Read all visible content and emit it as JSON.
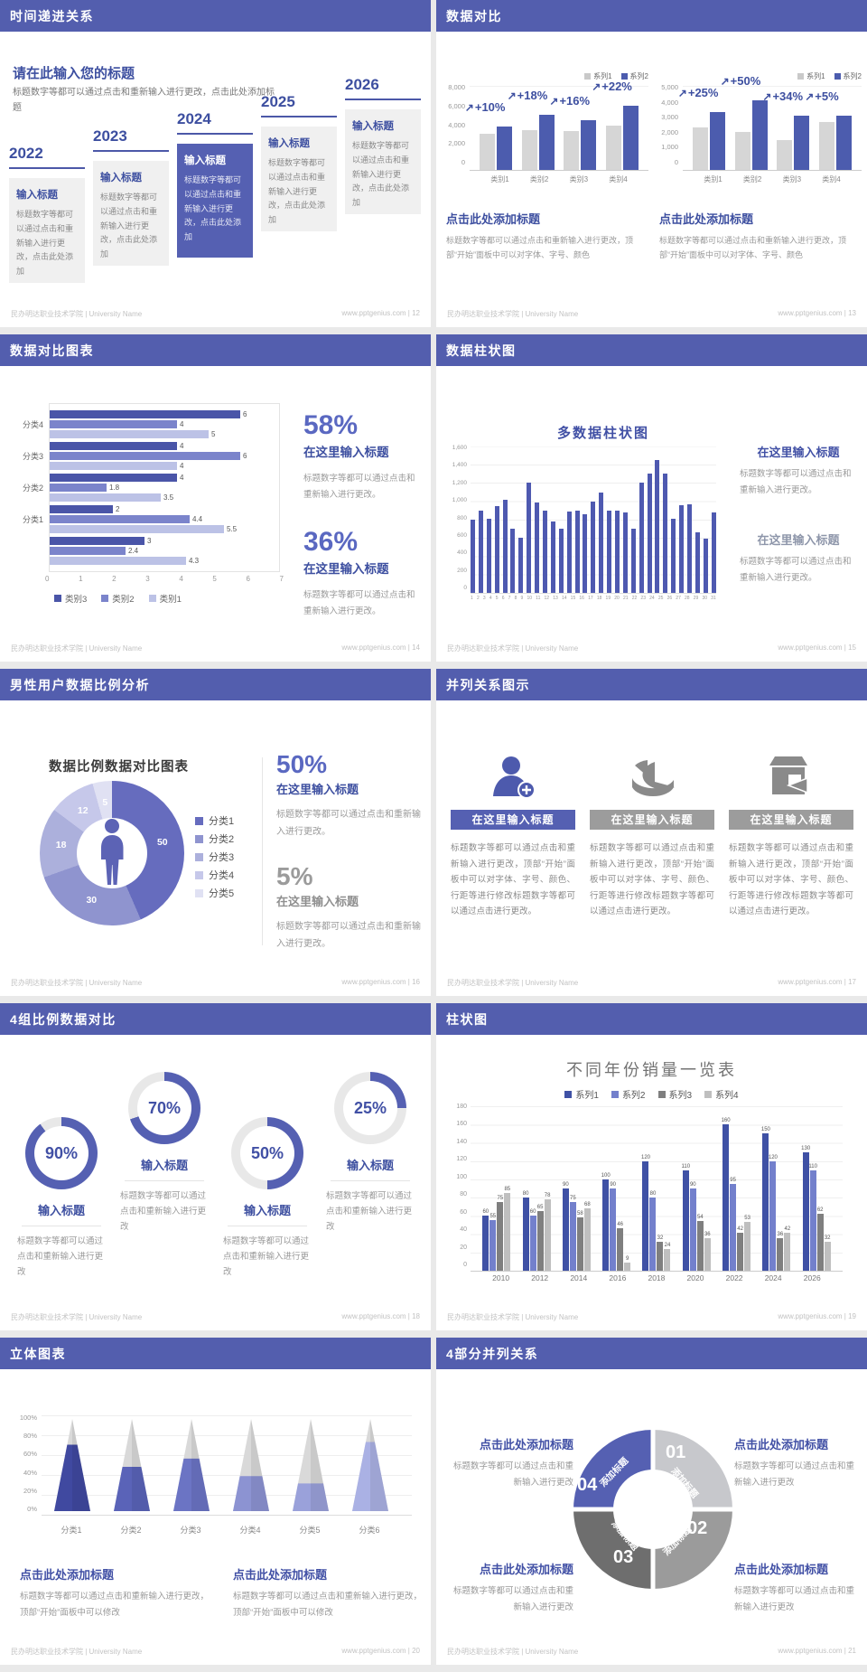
{
  "global": {
    "footer_left": "民办明达职业技术学院 | University Name",
    "footer_site": "www.pptgenius.com",
    "colors": {
      "header": "#535EAE",
      "accent": "#4150A5",
      "big_number": "#5A68C1",
      "bar_purple": "#4C5CAE",
      "bar_gray": "#D6D6D6",
      "body_text": "#8A8A8A",
      "page_bg": "#E9E9E9"
    }
  },
  "slides": [
    {
      "id": "timeline",
      "page": "12",
      "title": "时间递进关系",
      "heading": "请在此输入您的标题",
      "heading_desc": "标题数字等都可以通过点击和重新输入进行更改，点击此处添加标题",
      "items": [
        {
          "year": "2022",
          "label": "输入标题",
          "desc": "标题数字等都可以通过点击和重新输入进行更改，点击此处添加",
          "highlight": false
        },
        {
          "year": "2023",
          "label": "输入标题",
          "desc": "标题数字等都可以通过点击和重新输入进行更改，点击此处添加",
          "highlight": false
        },
        {
          "year": "2024",
          "label": "输入标题",
          "desc": "标题数字等都可以通过点击和重新输入进行更改，点击此处添加",
          "highlight": true
        },
        {
          "year": "2025",
          "label": "输入标题",
          "desc": "标题数字等都可以通过点击和重新输入进行更改，点击此处添加",
          "highlight": false
        },
        {
          "year": "2026",
          "label": "输入标题",
          "desc": "标题数字等都可以通过点击和重新输入进行更改，点击此处添加",
          "highlight": false
        }
      ]
    },
    {
      "id": "data-compare",
      "page": "13",
      "title": "数据对比",
      "panels": [
        {
          "heading": "点击此处添加标题",
          "desc": "标题数字等都可以通过点击和重新输入进行更改，顶部“开始”面板中可以对字体、字号、颜色"
        },
        {
          "heading": "点击此处添加标题",
          "desc": "标题数字等都可以通过点击和重新输入进行更改，顶部“开始”面板中可以对字体、字号、颜色"
        }
      ]
    },
    {
      "id": "compare-chart",
      "page": "14",
      "title": "数据对比图表",
      "stats": [
        {
          "pct": "58%",
          "heading": "在这里输入标题",
          "desc": "标题数字等都可以通过点击和重新输入进行更改。"
        },
        {
          "pct": "36%",
          "heading": "在这里输入标题",
          "desc": "标题数字等都可以通过点击和重新输入进行更改。"
        }
      ]
    },
    {
      "id": "column-chart",
      "page": "15",
      "title": "数据柱状图",
      "chart_title": "多数据柱状图",
      "blocks": [
        {
          "heading": "在这里输入标题",
          "desc": "标题数字等都可以通过点击和重新输入进行更改。"
        },
        {
          "heading": "在这里输入标题",
          "desc": "标题数字等都可以通过点击和重新输入进行更改。"
        }
      ]
    },
    {
      "id": "male-donut",
      "page": "16",
      "title": "男性用户数据比例分析",
      "chart_title": "数据比例数据对比图表",
      "stats": [
        {
          "pct": "50%",
          "heading": "在这里输入标题",
          "desc": "标题数字等都可以通过点击和重新输入进行更改。"
        },
        {
          "pct": "5%",
          "heading": "在这里输入标题",
          "desc": "标题数字等都可以通过点击和重新输入进行更改。"
        }
      ]
    },
    {
      "id": "parallel",
      "page": "17",
      "title": "并列关系图示",
      "columns": [
        {
          "icon": "woman-plus-icon",
          "title": "在这里输入标题",
          "desc": "标题数字等都可以通过点击和重新输入进行更改，顶部“开始”面板中可以对字体、字号、颜色、行距等进行修改标题数字等都可以通过点击进行更改。"
        },
        {
          "icon": "pie-3d-icon",
          "title": "在这里输入标题",
          "desc": "标题数字等都可以通过点击和重新输入进行更改，顶部“开始”面板中可以对字体、字号、颜色、行距等进行修改标题数字等都可以通过点击进行更改。"
        },
        {
          "icon": "shop-icon",
          "title": "在这里输入标题",
          "desc": "标题数字等都可以通过点击和重新输入进行更改，顶部“开始”面板中可以对字体、字号、颜色、行距等进行修改标题数字等都可以通过点击进行更改。"
        }
      ]
    },
    {
      "id": "gauges",
      "page": "18",
      "title": "4组比例数据对比",
      "rings": [
        {
          "label": "输入标题",
          "desc": "标题数字等都可以通过点击和重新输入进行更改"
        },
        {
          "label": "输入标题",
          "desc": "标题数字等都可以通过点击和重新输入进行更改"
        },
        {
          "label": "输入标题",
          "desc": "标题数字等都可以通过点击和重新输入进行更改"
        },
        {
          "label": "输入标题",
          "desc": "标题数字等都可以通过点击和重新输入进行更改"
        }
      ]
    },
    {
      "id": "year-bars",
      "page": "19",
      "title": "柱状图",
      "chart_title": "不同年份销量一览表"
    },
    {
      "id": "cones",
      "page": "20",
      "title": "立体图表",
      "blocks": [
        {
          "heading": "点击此处添加标题",
          "desc": "标题数字等都可以通过点击和重新输入进行更改，顶部“开始”面板中可以修改"
        },
        {
          "heading": "点击此处添加标题",
          "desc": "标题数字等都可以通过点击和重新输入进行更改，顶部“开始”面板中可以修改"
        }
      ]
    },
    {
      "id": "quad",
      "page": "21",
      "title": "4部分并列关系",
      "segments": [
        {
          "num": "01",
          "label": "添加标题",
          "color": "#C7C8CC"
        },
        {
          "num": "02",
          "label": "添加标题",
          "color": "#9B9B9B"
        },
        {
          "num": "03",
          "label": "添加标题",
          "color": "#6E6E6E"
        },
        {
          "num": "04",
          "label": "添加标题",
          "color": "#5560B2"
        }
      ],
      "blocks": [
        {
          "heading": "点击此处添加标题",
          "desc": "标题数字等都可以通过点击和重新输入进行更改"
        },
        {
          "heading": "点击此处添加标题",
          "desc": "标题数字等都可以通过点击和重新输入进行更改"
        },
        {
          "heading": "点击此处添加标题",
          "desc": "标题数字等都可以通过点击和重新输入进行更改"
        },
        {
          "heading": "点击此处添加标题",
          "desc": "标题数字等都可以通过点击和重新输入进行更改"
        }
      ]
    }
  ],
  "chart_data": [
    {
      "id": "compare_a",
      "type": "bar",
      "categories": [
        "类别1",
        "类别2",
        "类别3",
        "类别4"
      ],
      "series": [
        {
          "name": "系列1",
          "values": [
            3500,
            3800,
            3700,
            4300
          ]
        },
        {
          "name": "系列2",
          "values": [
            4200,
            5300,
            4800,
            6200
          ]
        }
      ],
      "annotations": [
        "+10%",
        "+18%",
        "+16%",
        "+22%"
      ],
      "ylim": [
        0,
        8000
      ],
      "yticks": [
        8000,
        6000,
        4000,
        2000,
        0
      ],
      "legend_position": "top-right"
    },
    {
      "id": "compare_b",
      "type": "bar",
      "categories": [
        "类别1",
        "类别2",
        "类别3",
        "类别4"
      ],
      "series": [
        {
          "name": "系列1",
          "values": [
            2550,
            2300,
            1800,
            2900
          ]
        },
        {
          "name": "系列2",
          "values": [
            3500,
            4200,
            3250,
            3250
          ]
        }
      ],
      "annotations": [
        "+25%",
        "+50%",
        "+34%",
        "+5%"
      ],
      "ylim": [
        0,
        5000
      ],
      "yticks": [
        5000,
        4000,
        3000,
        2000,
        1000,
        0
      ],
      "legend_position": "top-right"
    },
    {
      "id": "category_bars",
      "type": "bar",
      "orientation": "horizontal",
      "categories": [
        "分类4",
        "分类3",
        "分类2",
        "分类1",
        ""
      ],
      "series": [
        {
          "name": "类别3",
          "values": [
            6,
            4,
            4,
            2,
            3
          ]
        },
        {
          "name": "类别2",
          "values": [
            4,
            6,
            1.8,
            4.4,
            2.4
          ]
        },
        {
          "name": "类别1",
          "values": [
            5,
            4,
            3.5,
            5.5,
            4.3
          ]
        }
      ],
      "xlim": [
        0,
        7
      ],
      "xticks": [
        0,
        1,
        2,
        3,
        4,
        5,
        6,
        7
      ],
      "legend_position": "bottom"
    },
    {
      "id": "daily_bars",
      "type": "bar",
      "title": "多数据柱状图",
      "x": [
        1,
        2,
        3,
        4,
        5,
        6,
        7,
        8,
        9,
        10,
        11,
        12,
        13,
        14,
        15,
        16,
        17,
        18,
        19,
        20,
        21,
        22,
        23,
        24,
        25,
        26,
        27,
        28,
        29,
        30,
        31
      ],
      "values": [
        800,
        900,
        810,
        950,
        1020,
        700,
        600,
        1200,
        990,
        900,
        780,
        700,
        890,
        900,
        860,
        1000,
        1100,
        900,
        900,
        880,
        700,
        1200,
        1300,
        1450,
        1300,
        810,
        960,
        970,
        660,
        590,
        880
      ],
      "ylim": [
        0,
        1600
      ],
      "yticks": [
        1600,
        1400,
        1200,
        1000,
        800,
        600,
        400,
        200,
        0
      ]
    },
    {
      "id": "donut",
      "type": "pie",
      "title": "数据比例数据对比图表",
      "labels": [
        "分类1",
        "分类2",
        "分类3",
        "分类4",
        "分类5"
      ],
      "values": [
        50,
        30,
        18,
        12,
        5
      ],
      "colors": [
        "#666CBE",
        "#8F94CF",
        "#ACB0DC",
        "#C6C8EA",
        "#E0E1F3"
      ]
    },
    {
      "id": "gauges",
      "type": "pie",
      "note": "four donut gauges",
      "values": [
        90,
        70,
        50,
        25
      ]
    },
    {
      "id": "year_sales",
      "type": "bar",
      "title": "不同年份销量一览表",
      "categories": [
        "2010",
        "2012",
        "2014",
        "2016",
        "2018",
        "2020",
        "2022",
        "2024",
        "2026"
      ],
      "series": [
        {
          "name": "系列1",
          "values": [
            60,
            80,
            90,
            100,
            120,
            110,
            160,
            150,
            130
          ]
        },
        {
          "name": "系列2",
          "values": [
            55,
            60,
            75,
            90,
            80,
            90,
            95,
            120,
            110
          ]
        },
        {
          "name": "系列3",
          "values": [
            75,
            65,
            58,
            46,
            32,
            54,
            42,
            36,
            62
          ]
        },
        {
          "name": "系列4",
          "values": [
            85,
            78,
            68,
            9,
            24,
            36,
            53,
            42,
            32
          ]
        }
      ],
      "ylim": [
        0,
        180
      ],
      "yticks": [
        180,
        160,
        140,
        120,
        100,
        80,
        60,
        40,
        20,
        0
      ],
      "legend_position": "top"
    },
    {
      "id": "cones",
      "type": "bar",
      "note": "3D cones, percent filled",
      "categories": [
        "分类1",
        "分类2",
        "分类3",
        "分类4",
        "分类5",
        "分类6"
      ],
      "values": [
        72,
        48,
        57,
        38,
        30,
        75
      ],
      "colors": [
        "#4049A0",
        "#5A63B8",
        "#6B74C4",
        "#8C93D2",
        "#9AA1DA",
        "#AAB1E4"
      ],
      "ylim": [
        0,
        100
      ],
      "yticks": [
        "100%",
        "80%",
        "60%",
        "40%",
        "20%",
        "0%"
      ]
    },
    {
      "id": "quad",
      "type": "pie",
      "labels": [
        "01",
        "02",
        "03",
        "04"
      ],
      "values": [
        25,
        25,
        25,
        25
      ]
    }
  ]
}
